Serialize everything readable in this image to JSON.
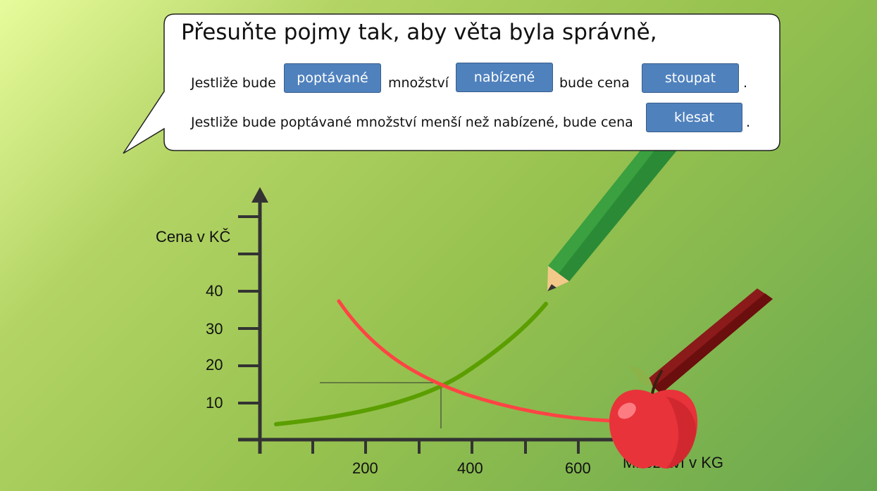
{
  "instruction": "Přesuňte pojmy tak, aby věta byla správně,",
  "sentence1": {
    "part1": "Jestliže bude",
    "chip1": "poptávané",
    "part2": "množství",
    "chip2": "nabízené",
    "part3": "bude cena",
    "chip3": "stoupat",
    "end": "."
  },
  "sentence2": {
    "text": "Jestliže bude poptávané množství menší než nabízené, bude cena",
    "chip": "klesat",
    "end": "."
  },
  "chart_data": {
    "type": "line",
    "ylabel": "Cena v KČ",
    "xlabel": "Množství v KG",
    "y_ticks": [
      "10",
      "20",
      "30",
      "40"
    ],
    "x_ticks": [
      "200",
      "400",
      "600"
    ],
    "series": [
      {
        "color": "#5b9e00"
      },
      {
        "color": "#ff4444"
      }
    ]
  },
  "colors": {
    "chip": "#4f81bd",
    "supply": "#5b9e00",
    "demand": "#ff4444"
  },
  "icons": [
    "pencil-green-icon",
    "pencil-red-icon",
    "apple-icon"
  ]
}
